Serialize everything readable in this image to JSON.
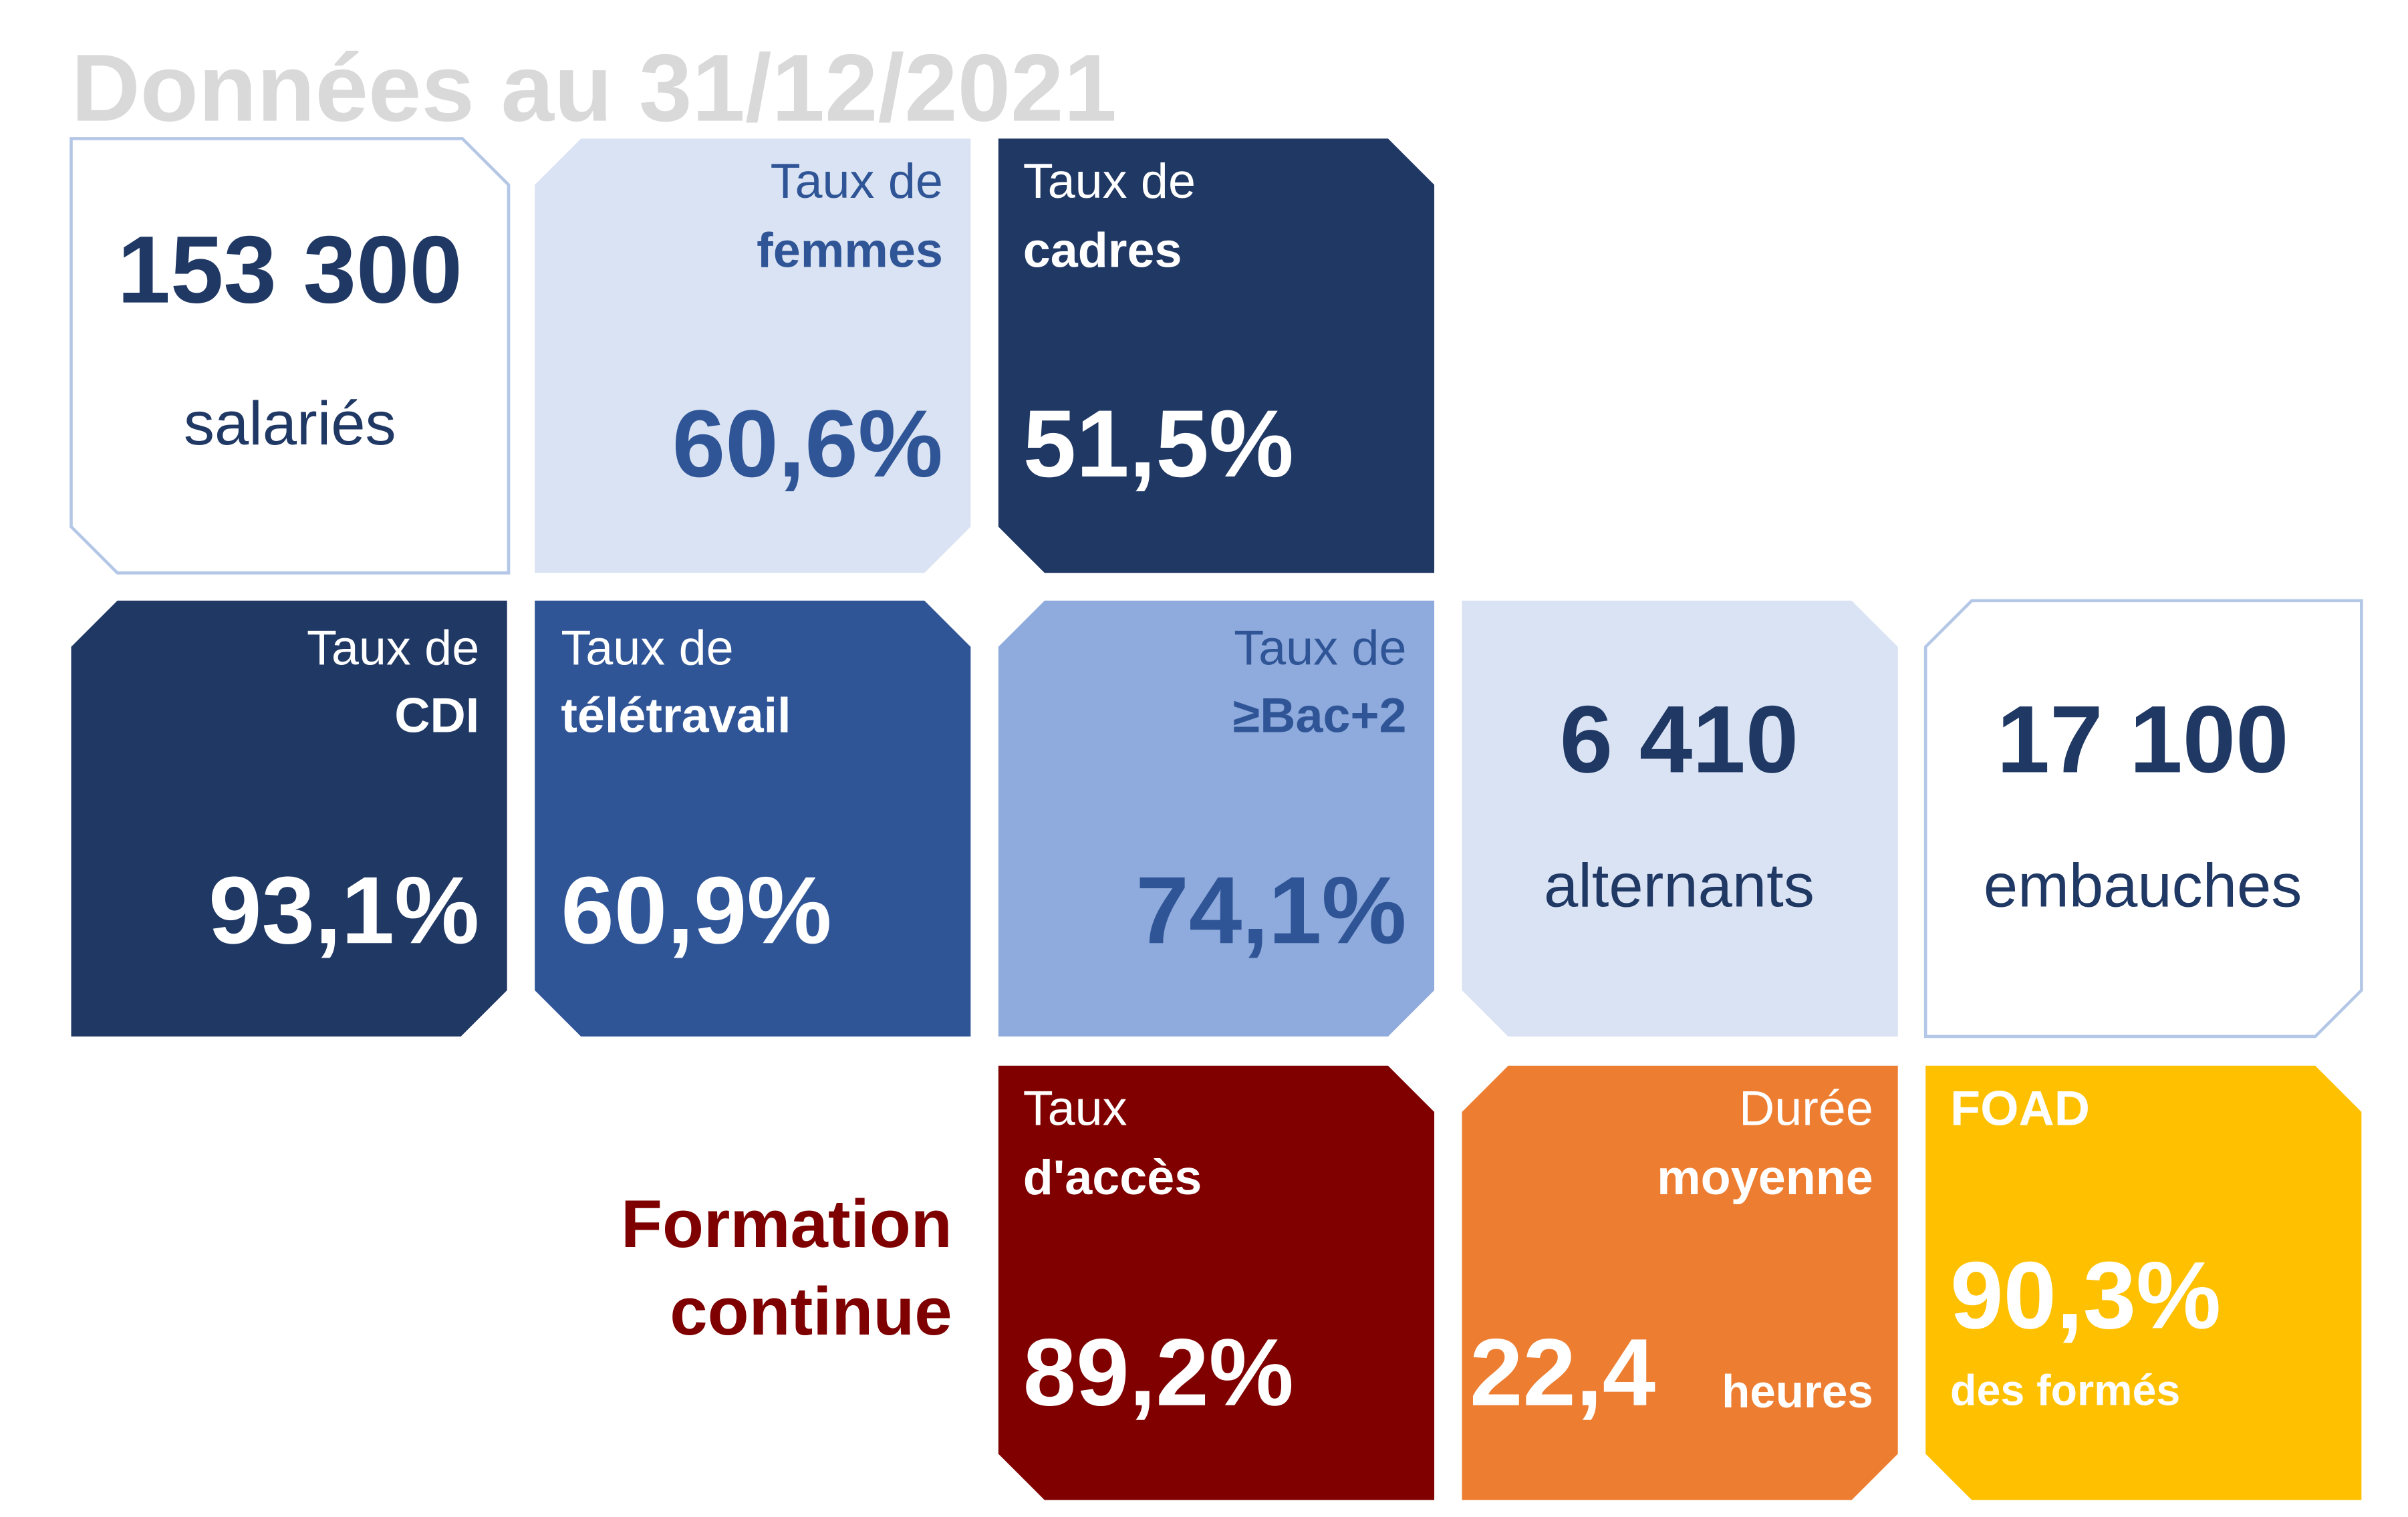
{
  "title": "Données au 31/12/2021",
  "tiles": [
    {
      "value": "153 300",
      "caption": "salariés"
    },
    {
      "label": [
        "Taux de",
        "femmes"
      ],
      "value": "60,6%"
    },
    {
      "label": [
        "Taux de",
        "cadres"
      ],
      "value": "51,5%"
    },
    {
      "label": [
        "Taux de",
        "CDI"
      ],
      "value": "93,1%"
    },
    {
      "label": [
        "Taux de",
        "télétravail"
      ],
      "value": "60,9%"
    },
    {
      "label": [
        "Taux de",
        "≥Bac+2"
      ],
      "value": "74,1%"
    },
    {
      "value": "6 410",
      "caption": "alternants"
    },
    {
      "value": "17 100",
      "caption": "embauches"
    },
    {
      "label": [
        "Taux",
        "d'accès"
      ],
      "value": "89,2%"
    },
    {
      "label": [
        "Durée",
        "moyenne"
      ],
      "value": "22,4",
      "unit": "heures"
    },
    {
      "label": [
        "FOAD"
      ],
      "value": "90,3%",
      "caption": "des formés"
    }
  ],
  "formation_label": [
    "Formation",
    "continue"
  ]
}
